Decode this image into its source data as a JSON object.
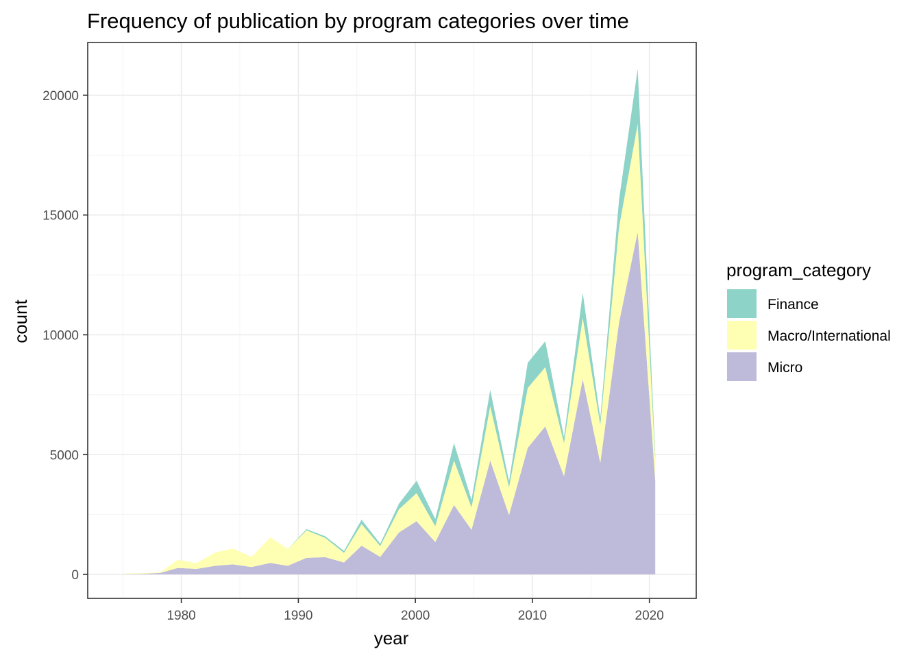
{
  "chart_data": {
    "type": "area",
    "stacked": true,
    "title": "Frequency of publication by program categories over time",
    "xlabel": "year",
    "ylabel": "count",
    "xlim": [
      1972,
      2024
    ],
    "ylim": [
      -1000,
      22200
    ],
    "x_ticks": [
      1980,
      1990,
      2000,
      2010,
      2020
    ],
    "y_ticks": [
      0,
      5000,
      10000,
      15000,
      20000
    ],
    "grid": true,
    "legend": {
      "title": "program_category",
      "position": "right"
    },
    "x": [
      1975,
      1976.6,
      1978.2,
      1979.7,
      1981.3,
      1982.9,
      1984.4,
      1986,
      1987.6,
      1989.1,
      1990.7,
      1992.3,
      1993.9,
      1995.4,
      1997,
      1998.6,
      2000.1,
      2001.7,
      2003.3,
      2004.8,
      2006.4,
      2008,
      2009.6,
      2011.1,
      2012.7,
      2014.3,
      2015.8,
      2017.4,
      2019,
      2020.5
    ],
    "series": [
      {
        "name": "Micro",
        "color": "#bebada",
        "values": [
          10,
          20,
          60,
          270,
          230,
          360,
          420,
          310,
          480,
          360,
          690,
          720,
          500,
          1200,
          730,
          1750,
          2220,
          1350,
          2900,
          1860,
          4750,
          2480,
          5280,
          6180,
          4100,
          8150,
          4650,
          10500,
          14300,
          3900
        ]
      },
      {
        "name": "Macro/International",
        "color": "#ffffb3",
        "values": [
          20,
          30,
          30,
          340,
          240,
          560,
          660,
          420,
          1070,
          700,
          1150,
          800,
          400,
          900,
          450,
          970,
          1170,
          660,
          1850,
          930,
          2270,
          1150,
          2500,
          2470,
          1380,
          2560,
          1580,
          3980,
          4500,
          860
        ]
      },
      {
        "name": "Finance",
        "color": "#8dd3c7",
        "values": [
          0,
          0,
          0,
          0,
          0,
          0,
          0,
          0,
          0,
          0,
          50,
          70,
          80,
          180,
          100,
          230,
          520,
          300,
          730,
          320,
          680,
          250,
          1050,
          1080,
          250,
          1040,
          280,
          1150,
          2300,
          250
        ]
      }
    ]
  }
}
